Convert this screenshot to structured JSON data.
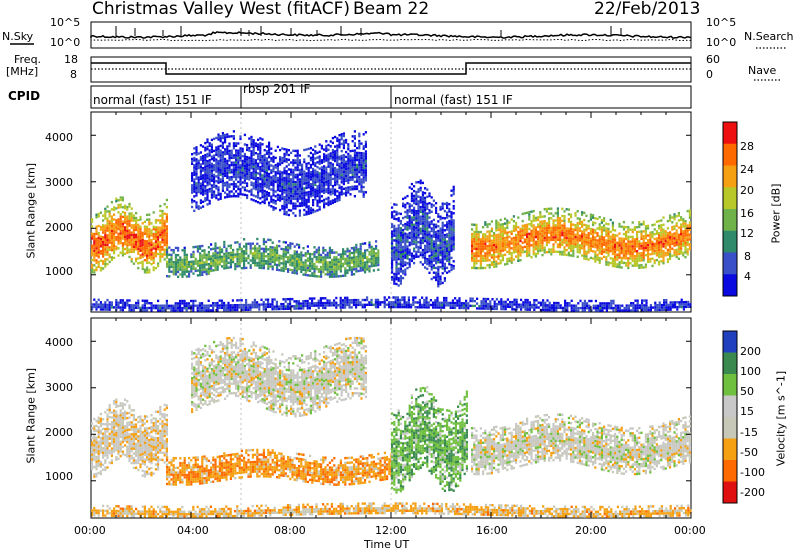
{
  "header": {
    "station": "Christmas Valley West (fitACF)",
    "beam": "Beam 22",
    "date": "22/Feb/2013"
  },
  "nsky_panel": {
    "left_label": "N.Sky",
    "right_label": "N.Search",
    "left_ticks": [
      "10^5",
      "10^0"
    ],
    "right_ticks": [
      "10^5",
      "10^0"
    ]
  },
  "freq_panel": {
    "left_label_top": "Freq.",
    "left_label_unit": "[MHz]",
    "right_label": "Nave",
    "left_ticks": [
      "18",
      "8"
    ],
    "right_ticks": [
      "60",
      "0"
    ]
  },
  "cpid": {
    "label": "CPID",
    "segments": [
      {
        "name": "normal (fast) 151 IF",
        "start_hour": 0,
        "end_hour": 6
      },
      {
        "name": "rbsp 201 IF",
        "start_hour": 6,
        "end_hour": 12
      },
      {
        "name": "normal (fast) 151 IF",
        "start_hour": 12,
        "end_hour": 24
      }
    ]
  },
  "chart_data": [
    {
      "type": "heatmap",
      "quantity": "Power",
      "ylabel": "Slant Range [km]",
      "y_ticks": [
        "1000",
        "2000",
        "3000",
        "4000"
      ],
      "ylim": [
        200,
        4500
      ],
      "xlim_hours": [
        0,
        24
      ],
      "colorbar": {
        "label": "Power [dB]",
        "ticks": [
          "4",
          "8",
          "12",
          "16",
          "20",
          "24",
          "28"
        ],
        "range": [
          0,
          30
        ],
        "colors": [
          "#0a0ae0",
          "#3a50c8",
          "#2e8a6a",
          "#6fb24a",
          "#b8c828",
          "#f5a013",
          "#ff6a00",
          "#ee1010"
        ]
      },
      "echo_regions": [
        {
          "x": [
            0.0,
            3.0
          ],
          "y": [
            1250,
            2500
          ],
          "level": 0.72
        },
        {
          "x": [
            3.0,
            11.5
          ],
          "y": [
            1050,
            1700
          ],
          "level": 0.35
        },
        {
          "x": [
            4.0,
            11.0
          ],
          "y": [
            2500,
            3900
          ],
          "level": 0.12
        },
        {
          "x": [
            12.0,
            14.5
          ],
          "y": [
            1000,
            2800
          ],
          "level": 0.15
        },
        {
          "x": [
            15.2,
            24.0
          ],
          "y": [
            1300,
            2300
          ],
          "level": 0.68
        },
        {
          "x": [
            0.0,
            24.0
          ],
          "y": [
            250,
            500
          ],
          "level": 0.12
        }
      ]
    },
    {
      "type": "heatmap",
      "quantity": "Velocity",
      "ylabel": "Slant Range [km]",
      "y_ticks": [
        "1000",
        "2000",
        "3000",
        "4000"
      ],
      "ylim": [
        200,
        4500
      ],
      "xlim_hours": [
        0,
        24
      ],
      "xlabel": "Time UT",
      "x_ticks": [
        "00:00",
        "04:00",
        "08:00",
        "12:00",
        "16:00",
        "20:00",
        "00:00"
      ],
      "colorbar": {
        "label": "Velocity [m s^-1]",
        "ticks": [
          "200",
          "100",
          "50",
          "15",
          "-15",
          "-50",
          "-100",
          "-200"
        ],
        "range": [
          -250,
          250
        ],
        "colors": [
          "#e01010",
          "#ff6a00",
          "#f5a013",
          "#c8c8b8",
          "#c8c8c8",
          "#70c040",
          "#3a8a50",
          "#2040c0"
        ]
      },
      "echo_regions": [
        {
          "x": [
            0.0,
            3.0
          ],
          "y": [
            1300,
            2600
          ],
          "velocity": -10
        },
        {
          "x": [
            3.0,
            12.0
          ],
          "y": [
            1000,
            1600
          ],
          "velocity": -60
        },
        {
          "x": [
            4.0,
            11.0
          ],
          "y": [
            2600,
            3900
          ],
          "velocity": 0
        },
        {
          "x": [
            12.0,
            15.0
          ],
          "y": [
            1000,
            2800
          ],
          "velocity": 60
        },
        {
          "x": [
            15.2,
            24.0
          ],
          "y": [
            1300,
            2300
          ],
          "velocity": 0
        },
        {
          "x": [
            0.0,
            24.0
          ],
          "y": [
            250,
            500
          ],
          "velocity": -40
        }
      ]
    }
  ]
}
